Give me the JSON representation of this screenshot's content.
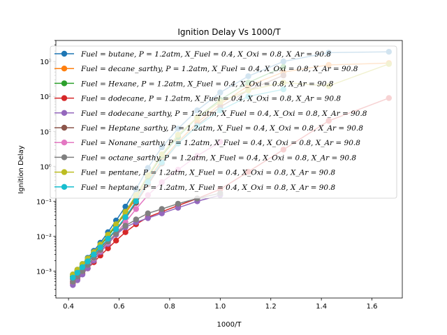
{
  "chart_data": {
    "type": "line",
    "title": "Ignition Delay Vs 1000/T",
    "xlabel": "1000/T",
    "ylabel": "Ignition Delay",
    "xlim": [
      0.35,
      1.72
    ],
    "ylim": [
      0.00017,
      4000
    ],
    "yscale": "log",
    "x_ticks": [
      0.4,
      0.6,
      0.8,
      1.0,
      1.2,
      1.4,
      1.6
    ],
    "x_tick_labels": [
      "0.4",
      "0.6",
      "0.8",
      "1.0",
      "1.2",
      "1.4",
      "1.6"
    ],
    "y_ticks": [
      0.001,
      0.01,
      0.1,
      1,
      10,
      100,
      1000
    ],
    "y_tick_labels": [
      "10⁻³",
      "10⁻²",
      "10⁻¹",
      "10⁰",
      "10¹",
      "10²",
      "10³"
    ],
    "grid": false,
    "legend_position": "upper-left",
    "series": [
      {
        "name": "Fuel = butane, P = 1.2atm, X_Fuel = 0.4, X_Oxi = 0.8, X_Ar = 90.8",
        "color": "#1f77b4",
        "x": [
          0.417,
          0.435,
          0.455,
          0.476,
          0.5,
          0.526,
          0.556,
          0.588,
          0.625,
          0.667,
          0.714,
          0.769,
          0.833,
          0.909,
          1.0,
          1.111,
          1.25,
          1.429,
          1.667
        ],
        "y": [
          0.0008,
          0.0011,
          0.0016,
          0.0024,
          0.0038,
          0.0065,
          0.013,
          0.028,
          0.07,
          0.22,
          0.9,
          3.5,
          12,
          40,
          130,
          380,
          1000,
          1800,
          1900
        ]
      },
      {
        "name": "Fuel = decane_sarthy, P = 1.2atm, X_Fuel = 0.4, X_Oxi = 0.8, X_Ar = 90.8",
        "color": "#ff7f0e",
        "x": [
          0.417,
          0.435,
          0.455,
          0.476,
          0.5,
          0.526,
          0.556,
          0.588,
          0.625,
          0.667,
          0.714,
          0.769,
          0.833,
          0.909,
          1.0,
          1.111,
          1.25,
          1.429,
          1.667
        ],
        "y": [
          0.0007,
          0.001,
          0.0014,
          0.0021,
          0.0033,
          0.0055,
          0.01,
          0.02,
          0.045,
          0.12,
          0.4,
          1.5,
          5,
          18,
          60,
          200,
          500,
          800,
          900
        ]
      },
      {
        "name": "Fuel = Hexane, P = 1.2atm, X_Fuel = 0.4, X_Oxi = 0.8, X_Ar = 90.8",
        "color": "#2ca02c",
        "x": [
          0.417,
          0.435,
          0.455,
          0.476,
          0.5,
          0.526,
          0.556,
          0.588,
          0.625,
          0.667,
          0.714,
          0.769,
          0.833,
          0.909,
          1.0,
          1.111,
          1.25
        ],
        "y": [
          0.0007,
          0.001,
          0.0014,
          0.0021,
          0.0033,
          0.0055,
          0.01,
          0.02,
          0.05,
          0.14,
          0.5,
          2,
          7,
          25,
          80,
          250,
          700
        ]
      },
      {
        "name": "Fuel = dodecane, P = 1.2atm, X_Fuel = 0.4, X_Oxi = 0.8, X_Ar = 90.8",
        "color": "#d62728",
        "x": [
          0.417,
          0.435,
          0.455,
          0.476,
          0.5,
          0.526,
          0.556,
          0.588,
          0.625,
          0.667,
          0.714,
          0.769,
          0.833,
          0.909,
          1.0,
          1.111,
          1.25,
          1.429,
          1.667
        ],
        "y": [
          0.00045,
          0.0006,
          0.00085,
          0.0012,
          0.0018,
          0.0028,
          0.0045,
          0.0075,
          0.013,
          0.022,
          0.035,
          0.05,
          0.075,
          0.12,
          0.22,
          0.7,
          3,
          20,
          90
        ]
      },
      {
        "name": "Fuel = dodecane_sarthy, P = 1.2atm, X_Fuel = 0.4, X_Oxi = 0.8, X_Ar = 90.8",
        "color": "#9467bd",
        "x": [
          0.417,
          0.435,
          0.455,
          0.476,
          0.5,
          0.526,
          0.556,
          0.588,
          0.625,
          0.667,
          0.714,
          0.769,
          0.833,
          0.909,
          1.0
        ],
        "y": [
          0.0004,
          0.00055,
          0.0008,
          0.0012,
          0.002,
          0.0035,
          0.006,
          0.011,
          0.018,
          0.025,
          0.033,
          0.045,
          0.065,
          0.1,
          0.15
        ]
      },
      {
        "name": "Fuel = Heptane_sarthy, P = 1.2atm, X_Fuel = 0.4, X_Oxi = 0.8, X_Ar = 90.8",
        "color": "#8c564b",
        "x": [
          0.417,
          0.435,
          0.455,
          0.476,
          0.5,
          0.526,
          0.556,
          0.588,
          0.625,
          0.667,
          0.714,
          0.769,
          0.833,
          0.909,
          1.0,
          1.111,
          1.25
        ],
        "y": [
          0.0006,
          0.0008,
          0.0012,
          0.0018,
          0.0028,
          0.0045,
          0.008,
          0.015,
          0.032,
          0.09,
          0.3,
          1.2,
          4.5,
          15,
          50,
          150,
          400
        ]
      },
      {
        "name": "Fuel = Nonane_sarthy, P = 1.2atm, X_Fuel = 0.4, X_Oxi = 0.8, X_Ar = 90.8",
        "color": "#e377c2",
        "x": [
          0.417,
          0.435,
          0.455,
          0.476,
          0.5,
          0.526,
          0.556,
          0.588,
          0.625,
          0.667,
          0.714,
          0.769,
          0.833,
          0.909,
          1.0
        ],
        "y": [
          0.0005,
          0.0007,
          0.001,
          0.0015,
          0.0023,
          0.0038,
          0.0065,
          0.012,
          0.025,
          0.06,
          0.15,
          0.35,
          0.8,
          2,
          5
        ]
      },
      {
        "name": "Fuel = octane_sarthy, P = 1.2atm, X_Fuel = 0.4, X_Oxi = 0.8, X_Ar = 90.8",
        "color": "#7f7f7f",
        "x": [
          0.417,
          0.435,
          0.455,
          0.476,
          0.5,
          0.526,
          0.556,
          0.588,
          0.625,
          0.667,
          0.714,
          0.769,
          0.833,
          0.909,
          1.0
        ],
        "y": [
          0.0005,
          0.0007,
          0.001,
          0.0015,
          0.0024,
          0.004,
          0.007,
          0.012,
          0.02,
          0.03,
          0.045,
          0.06,
          0.085,
          0.12,
          0.17
        ]
      },
      {
        "name": "Fuel = pentane, P = 1.2atm, X_Fuel = 0.4, X_Oxi = 0.8, X_Ar = 90.8",
        "color": "#bcbd22",
        "x": [
          0.417,
          0.435,
          0.455,
          0.476,
          0.5,
          0.526,
          0.556,
          0.588,
          0.625,
          0.667,
          0.714,
          0.769,
          0.833,
          0.909,
          1.0,
          1.111,
          1.25,
          1.429,
          1.667
        ],
        "y": [
          0.0008,
          0.0011,
          0.0016,
          0.0023,
          0.0035,
          0.0058,
          0.011,
          0.022,
          0.05,
          0.15,
          0.55,
          2.2,
          8,
          25,
          70,
          150,
          250,
          200,
          850
        ]
      },
      {
        "name": "Fuel = heptane, P = 1.2atm, X_Fuel = 0.4, X_Oxi = 0.8, X_Ar = 90.8",
        "color": "#17becf",
        "x": [
          0.417,
          0.435,
          0.455,
          0.476,
          0.5,
          0.526,
          0.556,
          0.588,
          0.625,
          0.667,
          0.714,
          0.769,
          0.833,
          0.909,
          1.0,
          1.111,
          1.25
        ],
        "y": [
          0.00065,
          0.0009,
          0.0013,
          0.0019,
          0.003,
          0.0048,
          0.0085,
          0.016,
          0.035,
          0.1,
          0.35,
          1.3,
          4.5,
          14,
          40,
          100,
          160
        ]
      }
    ]
  }
}
